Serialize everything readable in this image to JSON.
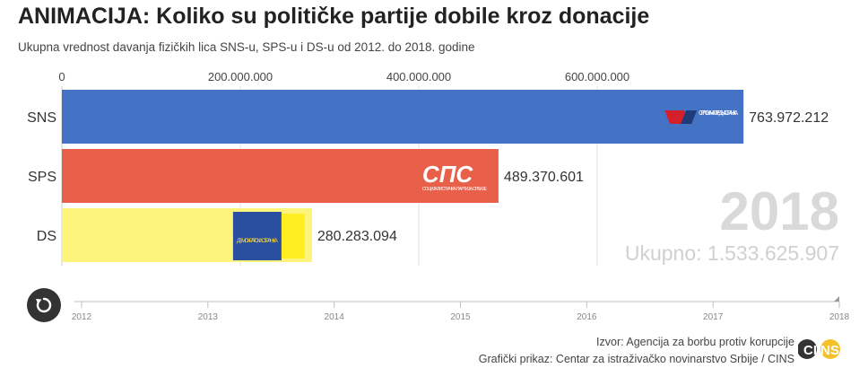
{
  "header": {
    "title": "ANIMACIJA: Koliko su političke partije dobile kroz donacije",
    "subtitle": "Ukupna vrednost davanja fizičkih lica SNS-u, SPS-u i DS-u od 2012. do 2018. godine"
  },
  "overlay": {
    "year": "2018",
    "total": "Ukupno: 1.533.625.907"
  },
  "footer": {
    "source": "Izvor: Agencija za borbu protiv korupcije",
    "credit": "Grafički prikaz: Centar za istraživačko novinarstvo Srbije / CINS",
    "cins_logo_text": "CINS"
  },
  "logos": {
    "sns": "СРПСКА НАПРЕДНА СТРАНКА",
    "sps_main": "СПС",
    "sps_sub": "СОЦИЈАЛИСТИЧКА ПАРТИЈА СРБИЈЕ",
    "ds": "ДЕМОКРАТСКА СТРАНКА"
  },
  "colors": {
    "SNS": "#4472c4",
    "SPS": "#e8604a",
    "DS": "#fdf47c",
    "DS_accent": "#ffee22",
    "DS_logo": "#2a4fa0",
    "replay": "#333333",
    "cins_yellow": "#f5c12b"
  },
  "chart_data": {
    "type": "bar",
    "orientation": "horizontal",
    "categories": [
      "SNS",
      "SPS",
      "DS"
    ],
    "values": [
      763972212,
      489370601,
      280283094
    ],
    "value_labels": [
      "763.972.212",
      "489.370.601",
      "280.283.094"
    ],
    "xlim": [
      0,
      800000000
    ],
    "xticks": [
      0,
      200000000,
      400000000,
      600000000
    ],
    "xtick_labels": [
      "0",
      "200.000.000",
      "400.000.000",
      "600.000.000"
    ],
    "grid": true,
    "timeline": {
      "years": [
        "2012",
        "2013",
        "2014",
        "2015",
        "2016",
        "2017",
        "2018"
      ],
      "current": "2018"
    }
  }
}
